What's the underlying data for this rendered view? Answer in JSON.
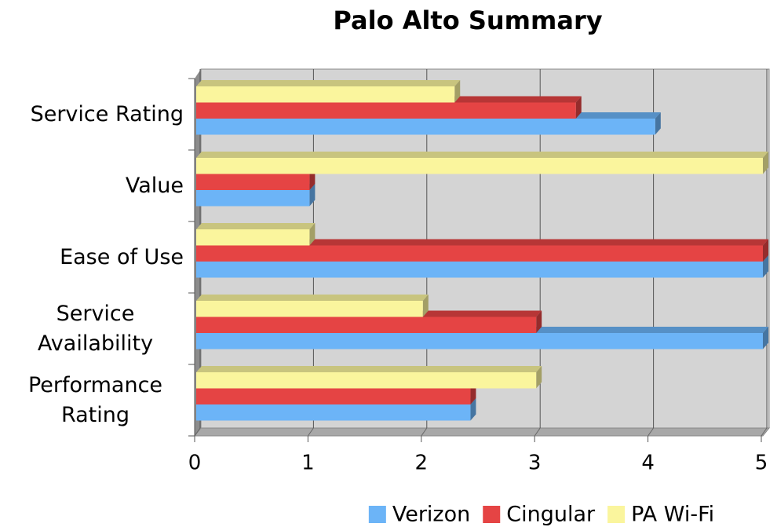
{
  "chart_data": {
    "type": "bar",
    "orientation": "horizontal",
    "title": "Palo Alto Summary",
    "categories": [
      "Service Rating",
      "Value",
      "Ease of Use",
      "Service Availability",
      "Performance Rating"
    ],
    "series": [
      {
        "name": "Verizon",
        "color": "#6cb4f7",
        "values": [
          4.05,
          1,
          5,
          5,
          2.42
        ]
      },
      {
        "name": "Cingular",
        "color": "#e54444",
        "values": [
          3.35,
          1,
          5,
          3,
          2.42
        ]
      },
      {
        "name": "PA Wi-Fi",
        "color": "#faf59d",
        "values": [
          2.28,
          5,
          1,
          2,
          3
        ]
      }
    ],
    "xlim": [
      0,
      5
    ],
    "xticks": [
      0,
      1,
      2,
      3,
      4,
      5
    ],
    "grid": true,
    "legend": "bottom"
  }
}
